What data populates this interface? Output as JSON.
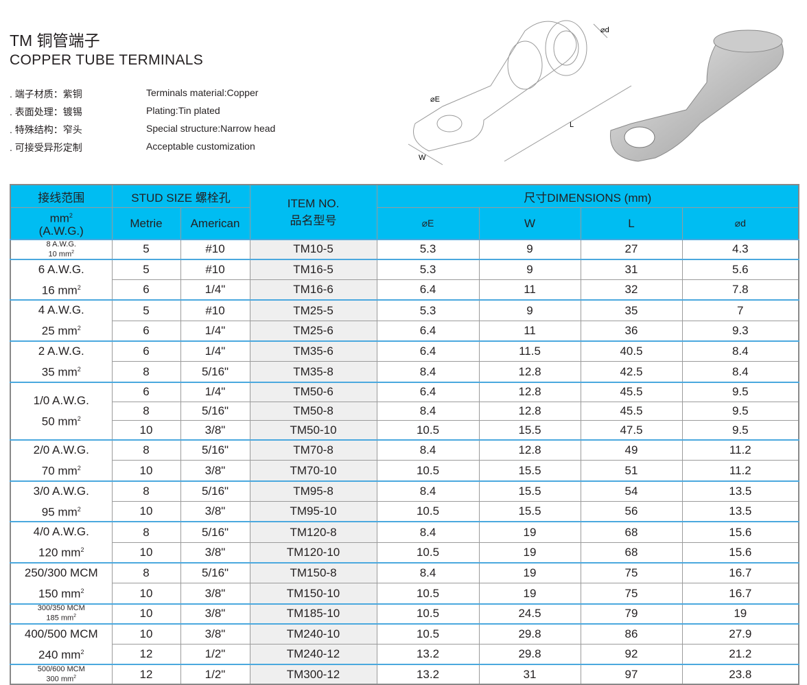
{
  "header": {
    "title": "TM 铜管端子",
    "subtitle": "COPPER TUBE TERMINALS"
  },
  "specs": [
    {
      "cn": ". 端子材质：紫铜",
      "en": "Terminals material:Copper"
    },
    {
      "cn": ". 表面处理：镀锡",
      "en": "Plating:Tin plated"
    },
    {
      "cn": ". 特殊结构：窄头",
      "en": "Special structure:Narrow head"
    },
    {
      "cn": ". 可接受异形定制",
      "en": "Acceptable customization"
    }
  ],
  "diagram": {
    "labels": {
      "d": "⌀d",
      "E": "⌀E",
      "L": "L",
      "W": "W"
    }
  },
  "table": {
    "headers": {
      "range": "接线范围",
      "range_unit": "mm",
      "range_unit_sup": "2",
      "range_awg": "(A.W.G.)",
      "stud": "STUD SIZE 螺栓孔",
      "metric": "Metrie",
      "american": "American",
      "item1": "ITEM NO.",
      "item2": "品名型号",
      "dims": "尺寸DIMENSIONS (mm)",
      "E": "⌀E",
      "W": "W",
      "L": "L",
      "d": "⌀d"
    },
    "groups": [
      {
        "awg": "8 A.W.G.",
        "mm": "10 mm",
        "small": true,
        "rows": [
          [
            "5",
            "#10",
            "TM10-5",
            "5.3",
            "9",
            "27",
            "4.3"
          ]
        ]
      },
      {
        "awg": "6 A.W.G.",
        "mm": "16 mm",
        "rows": [
          [
            "5",
            "#10",
            "TM16-5",
            "5.3",
            "9",
            "31",
            "5.6"
          ],
          [
            "6",
            "1/4\"",
            "TM16-6",
            "6.4",
            "11",
            "32",
            "7.8"
          ]
        ]
      },
      {
        "awg": "4 A.W.G.",
        "mm": "25 mm",
        "rows": [
          [
            "5",
            "#10",
            "TM25-5",
            "5.3",
            "9",
            "35",
            "7"
          ],
          [
            "6",
            "1/4\"",
            "TM25-6",
            "6.4",
            "11",
            "36",
            "9.3"
          ]
        ]
      },
      {
        "awg": "2 A.W.G.",
        "mm": "35 mm",
        "rows": [
          [
            "6",
            "1/4\"",
            "TM35-6",
            "6.4",
            "11.5",
            "40.5",
            "8.4"
          ],
          [
            "8",
            "5/16\"",
            "TM35-8",
            "8.4",
            "12.8",
            "42.5",
            "8.4"
          ]
        ]
      },
      {
        "awg": "1/0 A.W.G.",
        "mm": "50 mm",
        "rows": [
          [
            "6",
            "1/4\"",
            "TM50-6",
            "6.4",
            "12.8",
            "45.5",
            "9.5"
          ],
          [
            "8",
            "5/16\"",
            "TM50-8",
            "8.4",
            "12.8",
            "45.5",
            "9.5"
          ],
          [
            "10",
            "3/8\"",
            "TM50-10",
            "10.5",
            "15.5",
            "47.5",
            "9.5"
          ]
        ]
      },
      {
        "awg": "2/0 A.W.G.",
        "mm": "70 mm",
        "rows": [
          [
            "8",
            "5/16\"",
            "TM70-8",
            "8.4",
            "12.8",
            "49",
            "11.2"
          ],
          [
            "10",
            "3/8\"",
            "TM70-10",
            "10.5",
            "15.5",
            "51",
            "11.2"
          ]
        ]
      },
      {
        "awg": "3/0 A.W.G.",
        "mm": "95 mm",
        "rows": [
          [
            "8",
            "5/16\"",
            "TM95-8",
            "8.4",
            "15.5",
            "54",
            "13.5"
          ],
          [
            "10",
            "3/8\"",
            "TM95-10",
            "10.5",
            "15.5",
            "56",
            "13.5"
          ]
        ]
      },
      {
        "awg": "4/0 A.W.G.",
        "mm": "120 mm",
        "rows": [
          [
            "8",
            "5/16\"",
            "TM120-8",
            "8.4",
            "19",
            "68",
            "15.6"
          ],
          [
            "10",
            "3/8\"",
            "TM120-10",
            "10.5",
            "19",
            "68",
            "15.6"
          ]
        ]
      },
      {
        "awg": "250/300 MCM",
        "mm": "150 mm",
        "rows": [
          [
            "8",
            "5/16\"",
            "TM150-8",
            "8.4",
            "19",
            "75",
            "16.7"
          ],
          [
            "10",
            "3/8\"",
            "TM150-10",
            "10.5",
            "19",
            "75",
            "16.7"
          ]
        ]
      },
      {
        "awg": "300/350 MCM",
        "mm": "185 mm",
        "small": true,
        "rows": [
          [
            "10",
            "3/8\"",
            "TM185-10",
            "10.5",
            "24.5",
            "79",
            "19"
          ]
        ]
      },
      {
        "awg": "400/500 MCM",
        "mm": "240 mm",
        "rows": [
          [
            "10",
            "3/8\"",
            "TM240-10",
            "10.5",
            "29.8",
            "86",
            "27.9"
          ],
          [
            "12",
            "1/2\"",
            "TM240-12",
            "13.2",
            "29.8",
            "92",
            "21.2"
          ]
        ]
      },
      {
        "awg": "500/600 MCM",
        "mm": "300 mm",
        "small": true,
        "rows": [
          [
            "12",
            "1/2\"",
            "TM300-12",
            "13.2",
            "31",
            "97",
            "23.8"
          ]
        ]
      }
    ],
    "sup": "2"
  }
}
